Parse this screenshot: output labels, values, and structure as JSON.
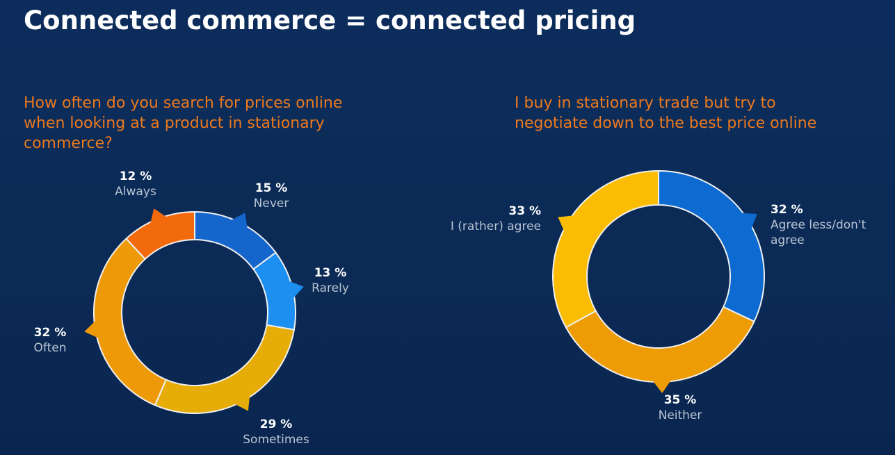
{
  "title": "Connected commerce = connected pricing",
  "chart_data": [
    {
      "type": "donut",
      "title": "How often do you search for prices online when looking at a product in stationary commerce?",
      "categories": [
        "Never",
        "Rarely",
        "Sometimes",
        "Often",
        "Always"
      ],
      "values": [
        15,
        13,
        29,
        32,
        12
      ],
      "value_labels": [
        "15 %",
        "13 %",
        "29 %",
        "32 %",
        "12 %"
      ],
      "colors": [
        "#1466cc",
        "#1c8ff0",
        "#e6ad08",
        "#ee9a08",
        "#f26a0c"
      ]
    },
    {
      "type": "donut",
      "title": "I buy in stationary trade but try to negotiate down to the best price online",
      "categories": [
        "Agree less/don't agree",
        "Neither",
        "I (rather) agree"
      ],
      "values": [
        32,
        35,
        33
      ],
      "value_labels": [
        "32 %",
        "35 %",
        "33 %"
      ],
      "colors": [
        "#0c6ad0",
        "#ee9c06",
        "#fbbd04"
      ]
    }
  ]
}
